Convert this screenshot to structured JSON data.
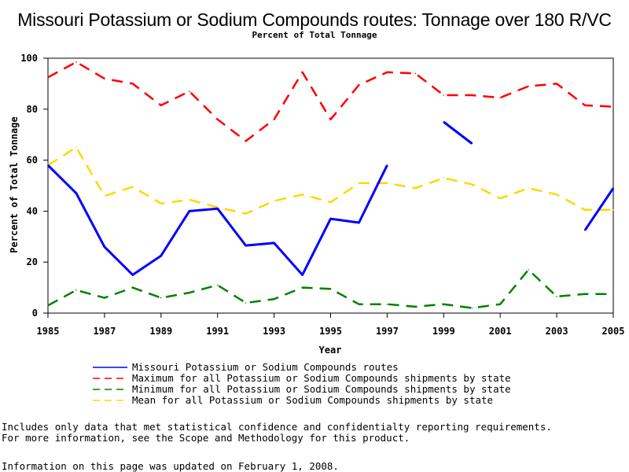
{
  "title": "Missouri Potassium or Sodium Compounds routes: Tonnage over 180 R/VC",
  "subtitle": "Percent of Total Tonnage",
  "chart_data": {
    "type": "line",
    "xlabel": "Year",
    "ylabel": "Percent of Total Tonnage",
    "xlim": [
      1985,
      2005
    ],
    "ylim": [
      0,
      100
    ],
    "x_ticks": [
      1985,
      1987,
      1989,
      1991,
      1993,
      1995,
      1997,
      1999,
      2001,
      2003,
      2005
    ],
    "y_ticks": [
      0,
      20,
      40,
      60,
      80,
      100
    ],
    "grid": false,
    "legend_position": "bottom",
    "x": [
      1985,
      1986,
      1987,
      1988,
      1989,
      1990,
      1991,
      1992,
      1993,
      1994,
      1995,
      1996,
      1997,
      1998,
      1999,
      2000,
      2001,
      2002,
      2003,
      2004,
      2005
    ],
    "series": [
      {
        "name": "Missouri Potassium or Sodium Compounds routes",
        "color": "#0000ff",
        "style": "solid",
        "values": [
          58,
          47,
          26,
          15,
          22.5,
          40,
          41,
          26.5,
          27.5,
          15,
          37,
          35.5,
          58,
          null,
          75,
          66.5,
          null,
          null,
          null,
          32.5,
          49
        ]
      },
      {
        "name": "Maximum for all Potassium or Sodium Compounds shipments by state",
        "color": "#ff0000",
        "style": "dashed",
        "values": [
          92.5,
          98.5,
          92,
          90,
          81.5,
          87,
          76,
          67.5,
          76,
          94.5,
          76,
          89.5,
          94.5,
          94,
          85.5,
          85.5,
          84.5,
          89,
          90,
          81.5,
          81
        ]
      },
      {
        "name": "Minimum for all Potassium or Sodium Compounds shipments by state",
        "color": "#008000",
        "style": "dashed",
        "values": [
          3,
          9,
          6,
          10,
          6,
          8,
          11,
          4,
          5.5,
          10,
          9.5,
          3.5,
          3.5,
          2.5,
          3.5,
          2,
          3.5,
          17,
          6.5,
          7.5,
          7.5
        ]
      },
      {
        "name": "Mean for all Potassium or Sodium Compounds shipments by state",
        "color": "#ffd700",
        "style": "dashed",
        "values": [
          58,
          65,
          46,
          49.5,
          43,
          44.5,
          41.5,
          39,
          44,
          46.5,
          43.5,
          51,
          51,
          49,
          53,
          50.5,
          45,
          49,
          46.5,
          40.5,
          40.5
        ]
      }
    ]
  },
  "notes": [
    "Includes only data that met statistical confidence and confidentialty reporting requirements.",
    "For more information, see the Scope and Methodology for this product."
  ],
  "updated": "Information on this page was updated on February 1, 2008."
}
